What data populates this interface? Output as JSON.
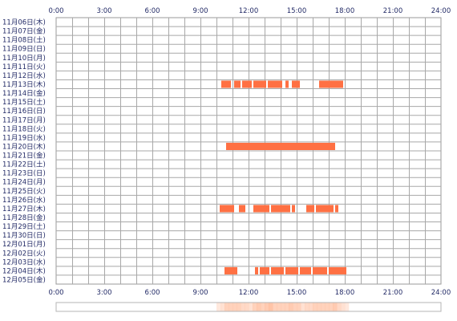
{
  "chart_data": {
    "type": "timeline",
    "x_unit": "hour",
    "xlim": [
      0,
      24
    ],
    "x_ticks": [
      "0:00",
      "3:00",
      "6:00",
      "9:00",
      "12:00",
      "15:00",
      "18:00",
      "21:00",
      "24:00"
    ],
    "grid": true,
    "bar_color": "#ff7043",
    "heat_color": "#ffb08a",
    "rows": [
      {
        "label": "11月06日(木)",
        "segments": []
      },
      {
        "label": "11月07日(金)",
        "segments": []
      },
      {
        "label": "11月08日(土)",
        "segments": []
      },
      {
        "label": "11月09日(日)",
        "segments": []
      },
      {
        "label": "11月10日(月)",
        "segments": []
      },
      {
        "label": "11月11日(火)",
        "segments": []
      },
      {
        "label": "11月12日(水)",
        "segments": []
      },
      {
        "label": "11月13日(木)",
        "segments": [
          [
            10.3,
            10.9
          ],
          [
            11.1,
            11.5
          ],
          [
            11.6,
            12.2
          ],
          [
            12.3,
            13.1
          ],
          [
            13.2,
            14.1
          ],
          [
            14.3,
            14.5
          ],
          [
            14.7,
            15.2
          ],
          [
            16.4,
            17.9
          ]
        ]
      },
      {
        "label": "11月14日(金)",
        "segments": []
      },
      {
        "label": "11月15日(土)",
        "segments": []
      },
      {
        "label": "11月16日(日)",
        "segments": []
      },
      {
        "label": "11月17日(月)",
        "segments": []
      },
      {
        "label": "11月18日(火)",
        "segments": []
      },
      {
        "label": "11月19日(水)",
        "segments": []
      },
      {
        "label": "11月20日(木)",
        "segments": [
          [
            10.6,
            17.4
          ]
        ]
      },
      {
        "label": "11月21日(金)",
        "segments": []
      },
      {
        "label": "11月22日(土)",
        "segments": []
      },
      {
        "label": "11月23日(日)",
        "segments": []
      },
      {
        "label": "11月24日(月)",
        "segments": []
      },
      {
        "label": "11月25日(火)",
        "segments": []
      },
      {
        "label": "11月26日(水)",
        "segments": []
      },
      {
        "label": "11月27日(木)",
        "segments": [
          [
            10.2,
            11.1
          ],
          [
            11.4,
            11.8
          ],
          [
            12.3,
            13.3
          ],
          [
            13.4,
            14.6
          ],
          [
            14.7,
            14.9
          ],
          [
            15.6,
            16.1
          ],
          [
            16.2,
            17.3
          ],
          [
            17.4,
            17.6
          ]
        ]
      },
      {
        "label": "11月28日(金)",
        "segments": []
      },
      {
        "label": "11月29日(土)",
        "segments": []
      },
      {
        "label": "11月30日(日)",
        "segments": []
      },
      {
        "label": "12月01日(月)",
        "segments": []
      },
      {
        "label": "12月02日(火)",
        "segments": []
      },
      {
        "label": "12月03日(水)",
        "segments": []
      },
      {
        "label": "12月04日(木)",
        "segments": [
          [
            10.5,
            11.3
          ],
          [
            12.4,
            12.6
          ],
          [
            12.7,
            13.3
          ],
          [
            13.4,
            14.2
          ],
          [
            14.3,
            15.1
          ],
          [
            15.2,
            15.9
          ],
          [
            16.0,
            16.9
          ],
          [
            17.0,
            18.1
          ]
        ]
      },
      {
        "label": "12月05日(金)",
        "segments": []
      }
    ]
  }
}
